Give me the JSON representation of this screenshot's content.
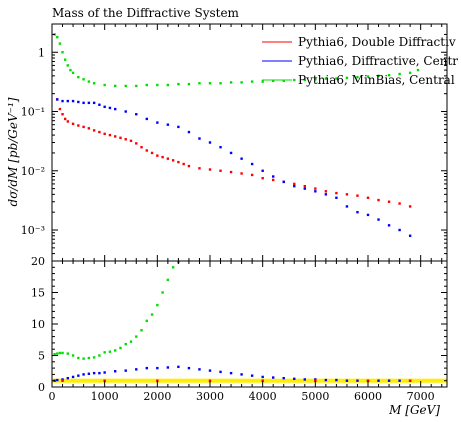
{
  "chart_data": [
    {
      "type": "scatter",
      "title": "Mass of the Diffractive System",
      "ylabel": "dσ/dM [pb/GeV⁻¹]",
      "yscale": "log",
      "xlim": [
        0,
        7500
      ],
      "ylim": [
        0.0003,
        3
      ],
      "x_ticks": [
        0,
        1000,
        2000,
        3000,
        4000,
        5000,
        6000,
        7000
      ],
      "y_ticks": [
        {
          "value": 1,
          "label": "1"
        },
        {
          "value": 0.1,
          "label": "10⁻¹"
        },
        {
          "value": 0.01,
          "label": "10⁻²"
        },
        {
          "value": 0.001,
          "label": "10⁻³"
        }
      ],
      "legend": "top-right",
      "series": [
        {
          "name": "Pythia6, Double Diffractiv",
          "color": "#ff0000",
          "points": [
            [
              100,
              0.16
            ],
            [
              150,
              0.11
            ],
            [
              200,
              0.09
            ],
            [
              250,
              0.075
            ],
            [
              300,
              0.068
            ],
            [
              400,
              0.062
            ],
            [
              500,
              0.058
            ],
            [
              600,
              0.055
            ],
            [
              700,
              0.052
            ],
            [
              800,
              0.048
            ],
            [
              900,
              0.045
            ],
            [
              1000,
              0.042
            ],
            [
              1100,
              0.04
            ],
            [
              1200,
              0.038
            ],
            [
              1300,
              0.036
            ],
            [
              1400,
              0.034
            ],
            [
              1500,
              0.032
            ],
            [
              1600,
              0.029
            ],
            [
              1700,
              0.025
            ],
            [
              1800,
              0.022
            ],
            [
              1900,
              0.02
            ],
            [
              2000,
              0.018
            ],
            [
              2100,
              0.017
            ],
            [
              2200,
              0.016
            ],
            [
              2300,
              0.015
            ],
            [
              2400,
              0.014
            ],
            [
              2500,
              0.013
            ],
            [
              2600,
              0.012
            ],
            [
              2800,
              0.011
            ],
            [
              3000,
              0.0105
            ],
            [
              3200,
              0.01
            ],
            [
              3400,
              0.0095
            ],
            [
              3600,
              0.009
            ],
            [
              3800,
              0.0085
            ],
            [
              4000,
              0.0075
            ],
            [
              4200,
              0.007
            ],
            [
              4400,
              0.0065
            ],
            [
              4600,
              0.006
            ],
            [
              4800,
              0.0055
            ],
            [
              5000,
              0.005
            ],
            [
              5200,
              0.0045
            ],
            [
              5400,
              0.0042
            ],
            [
              5600,
              0.004
            ],
            [
              5800,
              0.0038
            ],
            [
              6000,
              0.0035
            ],
            [
              6200,
              0.0032
            ],
            [
              6400,
              0.003
            ],
            [
              6600,
              0.0028
            ],
            [
              6800,
              0.0025
            ]
          ]
        },
        {
          "name": "Pythia6, Diffractive, Centr",
          "color": "#0000ff",
          "points": [
            [
              100,
              0.16
            ],
            [
              200,
              0.15
            ],
            [
              300,
              0.15
            ],
            [
              400,
              0.15
            ],
            [
              500,
              0.145
            ],
            [
              600,
              0.14
            ],
            [
              700,
              0.14
            ],
            [
              800,
              0.14
            ],
            [
              900,
              0.13
            ],
            [
              1000,
              0.12
            ],
            [
              1100,
              0.115
            ],
            [
              1200,
              0.11
            ],
            [
              1400,
              0.1
            ],
            [
              1600,
              0.09
            ],
            [
              1800,
              0.075
            ],
            [
              2000,
              0.065
            ],
            [
              2200,
              0.06
            ],
            [
              2400,
              0.055
            ],
            [
              2600,
              0.045
            ],
            [
              2800,
              0.035
            ],
            [
              3000,
              0.03
            ],
            [
              3200,
              0.025
            ],
            [
              3400,
              0.02
            ],
            [
              3600,
              0.016
            ],
            [
              3800,
              0.013
            ],
            [
              4000,
              0.01
            ],
            [
              4200,
              0.008
            ],
            [
              4400,
              0.0065
            ],
            [
              4600,
              0.0055
            ],
            [
              4800,
              0.005
            ],
            [
              5000,
              0.0045
            ],
            [
              5200,
              0.004
            ],
            [
              5400,
              0.0035
            ],
            [
              5600,
              0.0025
            ],
            [
              5800,
              0.002
            ],
            [
              6000,
              0.0018
            ],
            [
              6200,
              0.0015
            ],
            [
              6400,
              0.0012
            ],
            [
              6600,
              0.001
            ],
            [
              6800,
              0.0008
            ]
          ]
        },
        {
          "name": "Pythia6, MinBias, Central",
          "color": "#00dd00",
          "points": [
            [
              50,
              2.0
            ],
            [
              100,
              1.8
            ],
            [
              150,
              1.4
            ],
            [
              200,
              1.0
            ],
            [
              250,
              0.75
            ],
            [
              300,
              0.6
            ],
            [
              350,
              0.5
            ],
            [
              400,
              0.45
            ],
            [
              500,
              0.38
            ],
            [
              600,
              0.35
            ],
            [
              700,
              0.32
            ],
            [
              800,
              0.3
            ],
            [
              1000,
              0.28
            ],
            [
              1200,
              0.27
            ],
            [
              1400,
              0.27
            ],
            [
              1600,
              0.27
            ],
            [
              1800,
              0.28
            ],
            [
              2000,
              0.28
            ],
            [
              2200,
              0.28
            ],
            [
              2400,
              0.29
            ],
            [
              2600,
              0.29
            ],
            [
              2800,
              0.3
            ],
            [
              3000,
              0.3
            ],
            [
              3200,
              0.3
            ],
            [
              3400,
              0.31
            ],
            [
              3600,
              0.31
            ],
            [
              3800,
              0.32
            ],
            [
              4000,
              0.32
            ],
            [
              4200,
              0.33
            ],
            [
              4400,
              0.33
            ],
            [
              4600,
              0.34
            ],
            [
              4800,
              0.34
            ],
            [
              5000,
              0.35
            ],
            [
              5200,
              0.36
            ],
            [
              5400,
              0.36
            ],
            [
              5600,
              0.37
            ],
            [
              5800,
              0.38
            ],
            [
              6000,
              0.39
            ],
            [
              6200,
              0.4
            ],
            [
              6400,
              0.41
            ],
            [
              6600,
              0.43
            ],
            [
              6800,
              0.45
            ],
            [
              6950,
              0.5
            ]
          ]
        }
      ]
    },
    {
      "type": "scatter",
      "xlabel": "M [GeV]",
      "xlim": [
        0,
        7500
      ],
      "ylim": [
        0,
        20
      ],
      "x_ticks": [
        0,
        1000,
        2000,
        3000,
        4000,
        5000,
        6000,
        7000
      ],
      "y_ticks": [
        0,
        5,
        10,
        15,
        20
      ],
      "series": [
        {
          "name": "Pythia6, MinBias, Central",
          "color": "#00dd00",
          "points": [
            [
              50,
              5.2
            ],
            [
              100,
              5.3
            ],
            [
              150,
              5.4
            ],
            [
              200,
              5.4
            ],
            [
              300,
              5.3
            ],
            [
              400,
              5.0
            ],
            [
              500,
              4.6
            ],
            [
              600,
              4.5
            ],
            [
              700,
              4.6
            ],
            [
              800,
              4.7
            ],
            [
              900,
              5.0
            ],
            [
              1000,
              5.5
            ],
            [
              1100,
              5.6
            ],
            [
              1200,
              5.8
            ],
            [
              1300,
              6.2
            ],
            [
              1400,
              6.8
            ],
            [
              1500,
              7.2
            ],
            [
              1600,
              8.0
            ],
            [
              1700,
              9.0
            ],
            [
              1800,
              10.5
            ],
            [
              1900,
              11.5
            ],
            [
              2000,
              13.0
            ],
            [
              2100,
              15.0
            ],
            [
              2200,
              17.0
            ],
            [
              2300,
              19.0
            ],
            [
              2400,
              19.8
            ]
          ]
        },
        {
          "name": "Pythia6, Diffractive, Centr",
          "color": "#0000ff",
          "points": [
            [
              50,
              1.0
            ],
            [
              100,
              1.1
            ],
            [
              200,
              1.2
            ],
            [
              300,
              1.4
            ],
            [
              400,
              1.6
            ],
            [
              500,
              1.8
            ],
            [
              600,
              2.0
            ],
            [
              700,
              2.1
            ],
            [
              800,
              2.2
            ],
            [
              900,
              2.2
            ],
            [
              1000,
              2.3
            ],
            [
              1200,
              2.5
            ],
            [
              1400,
              2.6
            ],
            [
              1600,
              2.8
            ],
            [
              1800,
              3.0
            ],
            [
              2000,
              3.0
            ],
            [
              2200,
              3.1
            ],
            [
              2400,
              3.2
            ],
            [
              2600,
              3.0
            ],
            [
              2800,
              2.8
            ],
            [
              3000,
              2.6
            ],
            [
              3200,
              2.4
            ],
            [
              3400,
              2.2
            ],
            [
              3600,
              2.0
            ],
            [
              3800,
              1.8
            ],
            [
              4000,
              1.6
            ],
            [
              4200,
              1.5
            ],
            [
              4400,
              1.4
            ],
            [
              4600,
              1.3
            ],
            [
              4800,
              1.2
            ],
            [
              5000,
              1.2
            ],
            [
              5200,
              1.1
            ],
            [
              5400,
              1.1
            ],
            [
              5600,
              1.0
            ],
            [
              5800,
              1.0
            ],
            [
              6000,
              1.0
            ],
            [
              6200,
              1.0
            ],
            [
              6400,
              1.0
            ],
            [
              6600,
              1.0
            ],
            [
              6800,
              1.0
            ]
          ]
        },
        {
          "name": "Pythia6, Double Diffractiv",
          "color": "#ff0000",
          "points": [
            [
              200,
              1.0
            ],
            [
              1000,
              1.0
            ],
            [
              2000,
              1.0
            ],
            [
              3000,
              1.0
            ],
            [
              4000,
              1.0
            ],
            [
              5000,
              1.0
            ],
            [
              6000,
              1.0
            ],
            [
              6800,
              1.0
            ]
          ]
        }
      ],
      "reference_band": {
        "value": 1,
        "color": "#ffee00"
      }
    }
  ]
}
